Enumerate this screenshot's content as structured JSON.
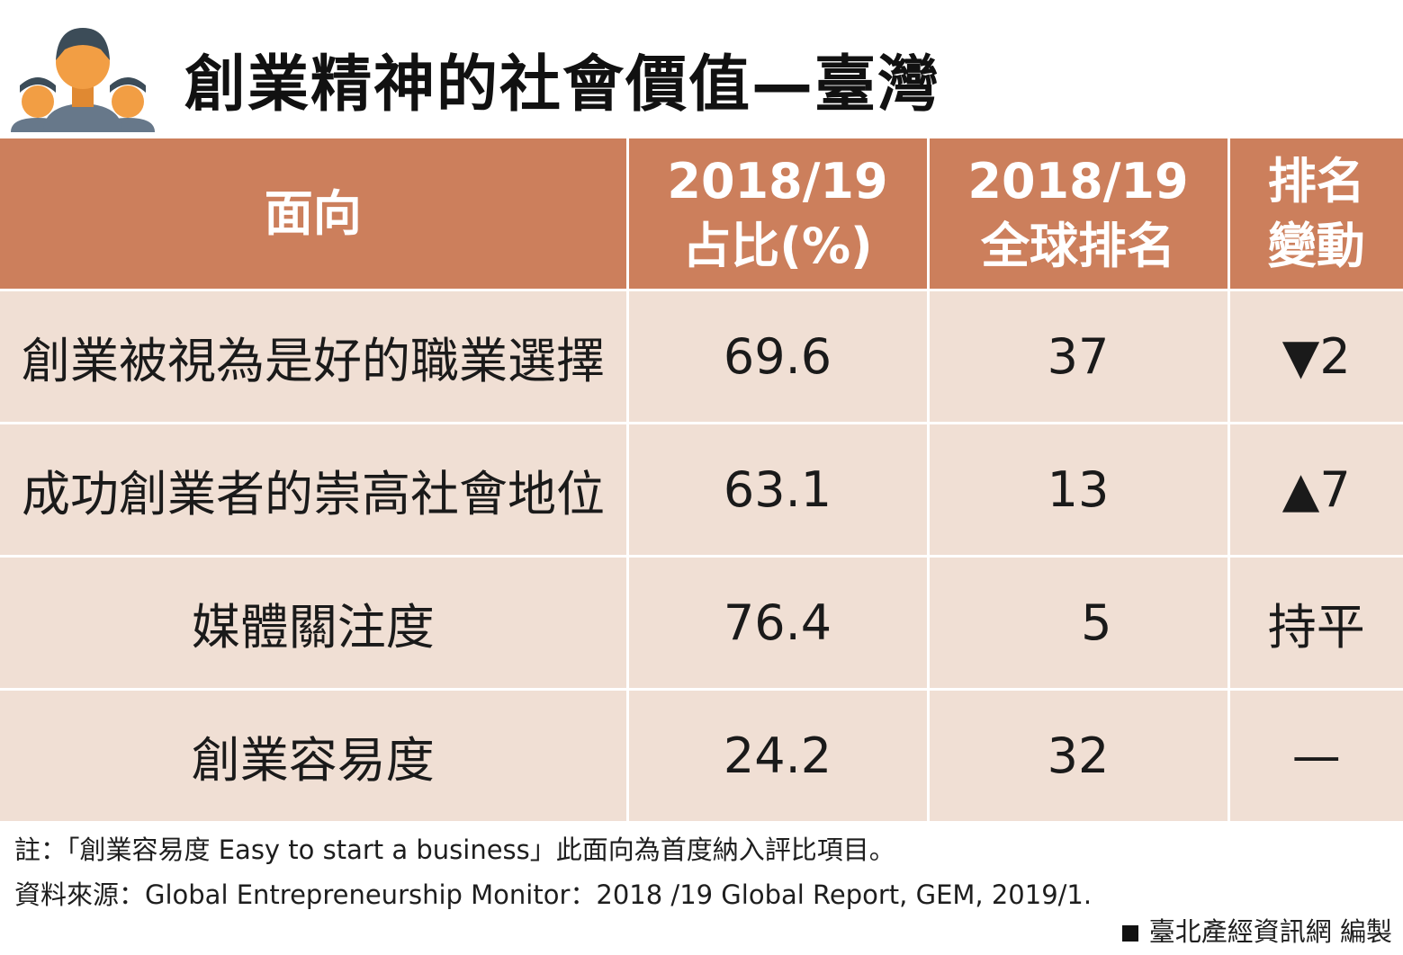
{
  "header": {
    "title": "創業精神的社會價值—臺灣",
    "icon": "people-group-icon"
  },
  "colors": {
    "header_bg": "#cc7f5c",
    "row_bg": "#f0dfd4",
    "increase": "#e00000"
  },
  "chart_data": {
    "type": "table",
    "title": "創業精神的社會價值—臺灣",
    "columns": [
      {
        "line1": "面向",
        "line2": ""
      },
      {
        "line1": "2018/19",
        "line2": "占比(%)"
      },
      {
        "line1": "2018/19",
        "line2": "全球排名"
      },
      {
        "line1": "排名",
        "line2": "變動"
      }
    ],
    "rows": [
      {
        "aspect": "創業被視為是好的職業選擇",
        "share": "69.6",
        "rank": "37",
        "change": "▼2"
      },
      {
        "aspect": "成功創業者的崇高社會地位",
        "share": "63.1",
        "rank": "13",
        "change": "▲7"
      },
      {
        "aspect": "媒體關注度",
        "share": "76.4",
        "rank": "5",
        "change": "持平"
      },
      {
        "aspect": "創業容易度",
        "share": "24.2",
        "rank": "32",
        "change": "—"
      }
    ]
  },
  "notes": {
    "note": "註：「創業容易度 Easy to start a business」此面向為首度納入評比項目。",
    "source": "資料來源：Global Entrepreneurship Monitor：2018 /19 Global Report, GEM, 2019/1."
  },
  "credit": "臺北產經資訊網  編製"
}
